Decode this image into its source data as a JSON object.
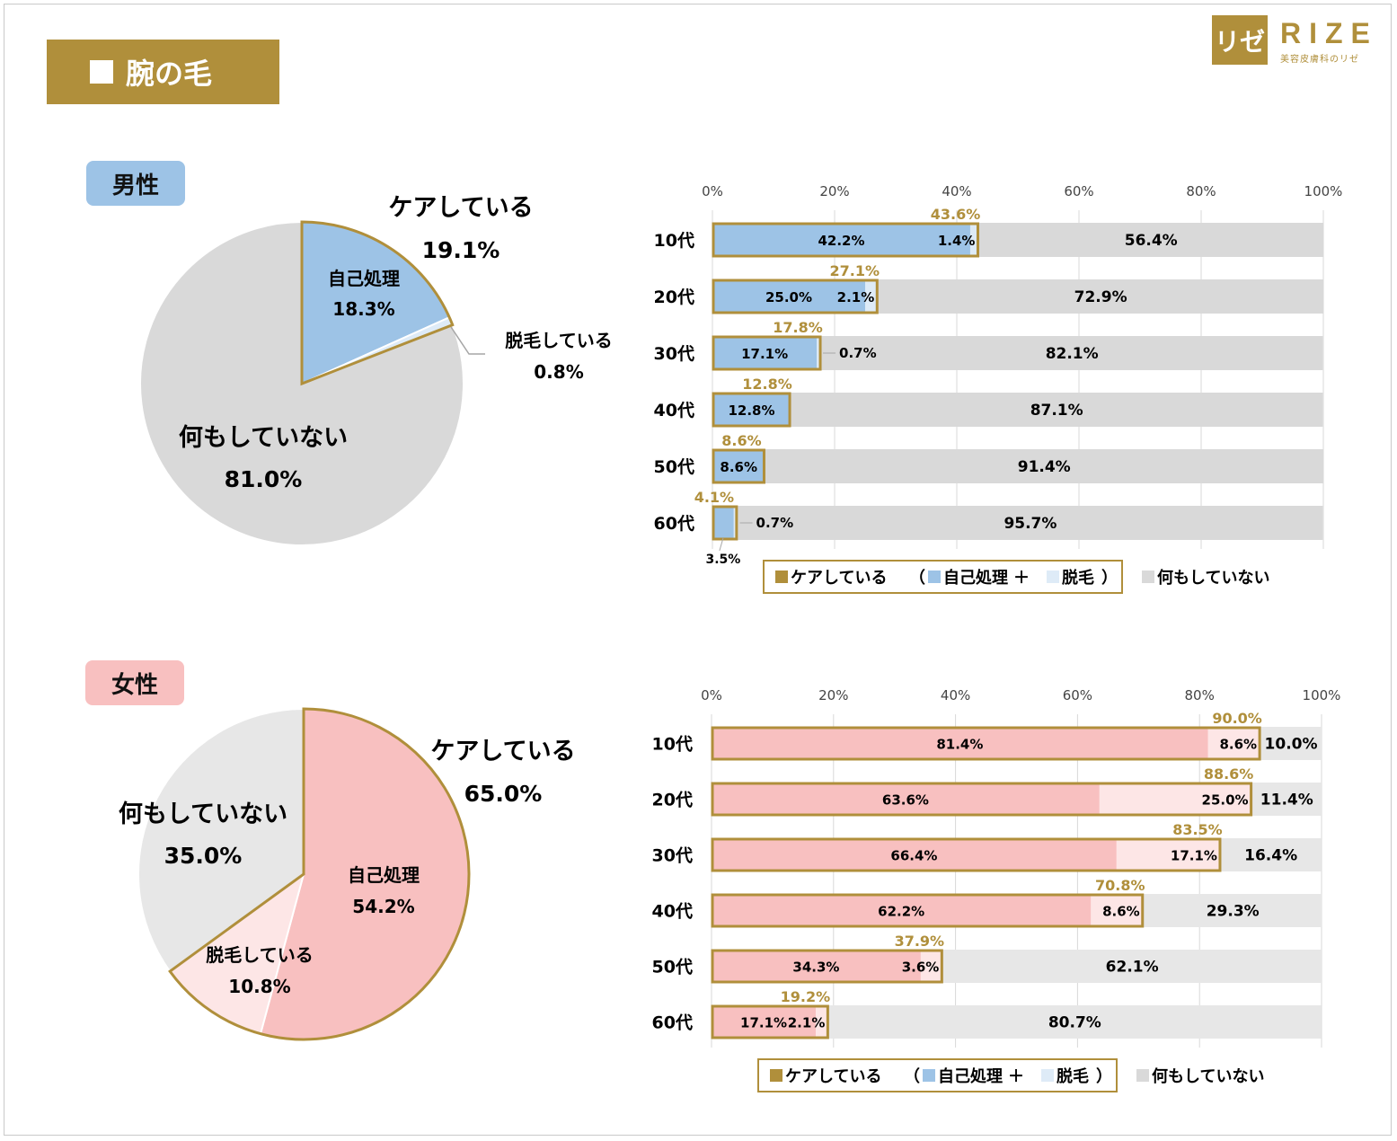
{
  "page_title": "腕の毛",
  "logo": {
    "mark": "リゼ",
    "brand": "RIZE",
    "tagline": "美容皮膚科のリゼ"
  },
  "colors": {
    "gold": "#b08f3b",
    "male_blue": "#9dc3e6",
    "male_light": "#deebf7",
    "female_pink": "#f8c0c0",
    "female_light": "#fde6e6",
    "none_gray": "#d9d9d9",
    "female_none_gray": "#e7e7e7"
  },
  "sections": [
    {
      "key": "male",
      "gender_label": "男性",
      "pie": {
        "care_label": "ケアしている",
        "care_value": "19.1%",
        "self_label": "自己処理",
        "self_value": "18.3%",
        "removal_label": "脱毛している",
        "removal_value": "0.8%",
        "none_label": "何もしていない",
        "none_value": "81.0%"
      },
      "legend": {
        "care": "ケアしている",
        "paren_open": "（",
        "self": "自己処理",
        "plus": "＋",
        "removal": "脱毛",
        "paren_close": "）",
        "none": "何もしていない"
      }
    },
    {
      "key": "female",
      "gender_label": "女性",
      "pie": {
        "care_label": "ケアしている",
        "care_value": "65.0%",
        "self_label": "自己処理",
        "self_value": "54.2%",
        "removal_label": "脱毛している",
        "removal_value": "10.8%",
        "none_label": "何もしていない",
        "none_value": "35.0%"
      },
      "legend": {
        "care": "ケアしている",
        "paren_open": "（",
        "self": "自己処理",
        "plus": "＋",
        "removal": "脱毛",
        "paren_close": "）",
        "none": "何もしていない"
      }
    }
  ],
  "chart_data": [
    {
      "type": "pie",
      "title": "男性",
      "slices": [
        {
          "name": "自己処理",
          "value": 18.3
        },
        {
          "name": "脱毛している",
          "value": 0.8
        },
        {
          "name": "何もしていない",
          "value": 81.0
        }
      ],
      "group": {
        "name": "ケアしている",
        "value": 19.1
      }
    },
    {
      "type": "bar",
      "orientation": "horizontal",
      "stacked": true,
      "title": "男性",
      "categories": [
        "10代",
        "20代",
        "30代",
        "40代",
        "50代",
        "60代"
      ],
      "series": [
        {
          "name": "自己処理",
          "values": [
            42.2,
            25.0,
            17.1,
            12.8,
            8.6,
            3.5
          ]
        },
        {
          "name": "脱毛",
          "values": [
            1.4,
            2.1,
            0.7,
            0.0,
            0.0,
            0.7
          ]
        },
        {
          "name": "何もしていない",
          "values": [
            56.4,
            72.9,
            82.1,
            87.1,
            91.4,
            95.7
          ]
        }
      ],
      "care_totals": [
        43.6,
        27.1,
        17.8,
        12.8,
        8.6,
        4.1
      ],
      "care_total_labels": [
        "43.6%",
        "27.1%",
        "17.8%",
        "12.8%",
        "8.6%",
        "4.1%"
      ],
      "value_labels": {
        "self": [
          "42.2%",
          "25.0%",
          "17.1%",
          "12.8%",
          "8.6%",
          "3.5%"
        ],
        "removal": [
          "1.4%",
          "2.1%",
          "0.7%",
          "",
          "",
          "0.7%"
        ],
        "none": [
          "56.4%",
          "72.9%",
          "82.1%",
          "87.1%",
          "91.4%",
          "95.7%"
        ]
      },
      "xlim": [
        0,
        100
      ],
      "xticks": [
        "0%",
        "20%",
        "40%",
        "60%",
        "80%",
        "100%"
      ],
      "legend": [
        "ケアしている",
        "自己処理",
        "脱毛",
        "何もしていない"
      ]
    },
    {
      "type": "pie",
      "title": "女性",
      "slices": [
        {
          "name": "自己処理",
          "value": 54.2
        },
        {
          "name": "脱毛している",
          "value": 10.8
        },
        {
          "name": "何もしていない",
          "value": 35.0
        }
      ],
      "group": {
        "name": "ケアしている",
        "value": 65.0
      }
    },
    {
      "type": "bar",
      "orientation": "horizontal",
      "stacked": true,
      "title": "女性",
      "categories": [
        "10代",
        "20代",
        "30代",
        "40代",
        "50代",
        "60代"
      ],
      "series": [
        {
          "name": "自己処理",
          "values": [
            81.4,
            63.6,
            66.4,
            62.2,
            34.3,
            17.1
          ]
        },
        {
          "name": "脱毛",
          "values": [
            8.6,
            25.0,
            17.1,
            8.6,
            3.6,
            2.1
          ]
        },
        {
          "name": "何もしていない",
          "values": [
            10.0,
            11.4,
            16.4,
            29.3,
            62.1,
            80.7
          ]
        }
      ],
      "care_totals": [
        90.0,
        88.6,
        83.5,
        70.8,
        37.9,
        19.2
      ],
      "care_total_labels": [
        "90.0%",
        "88.6%",
        "83.5%",
        "70.8%",
        "37.9%",
        "19.2%"
      ],
      "value_labels": {
        "self": [
          "81.4%",
          "63.6%",
          "66.4%",
          "62.2%",
          "34.3%",
          "17.1%"
        ],
        "removal": [
          "8.6%",
          "25.0%",
          "17.1%",
          "8.6%",
          "3.6%",
          "2.1%"
        ],
        "none": [
          "10.0%",
          "11.4%",
          "16.4%",
          "29.3%",
          "62.1%",
          "80.7%"
        ]
      },
      "xlim": [
        0,
        100
      ],
      "xticks": [
        "0%",
        "20%",
        "40%",
        "60%",
        "80%",
        "100%"
      ],
      "legend": [
        "ケアしている",
        "自己処理",
        "脱毛",
        "何もしていない"
      ]
    }
  ]
}
